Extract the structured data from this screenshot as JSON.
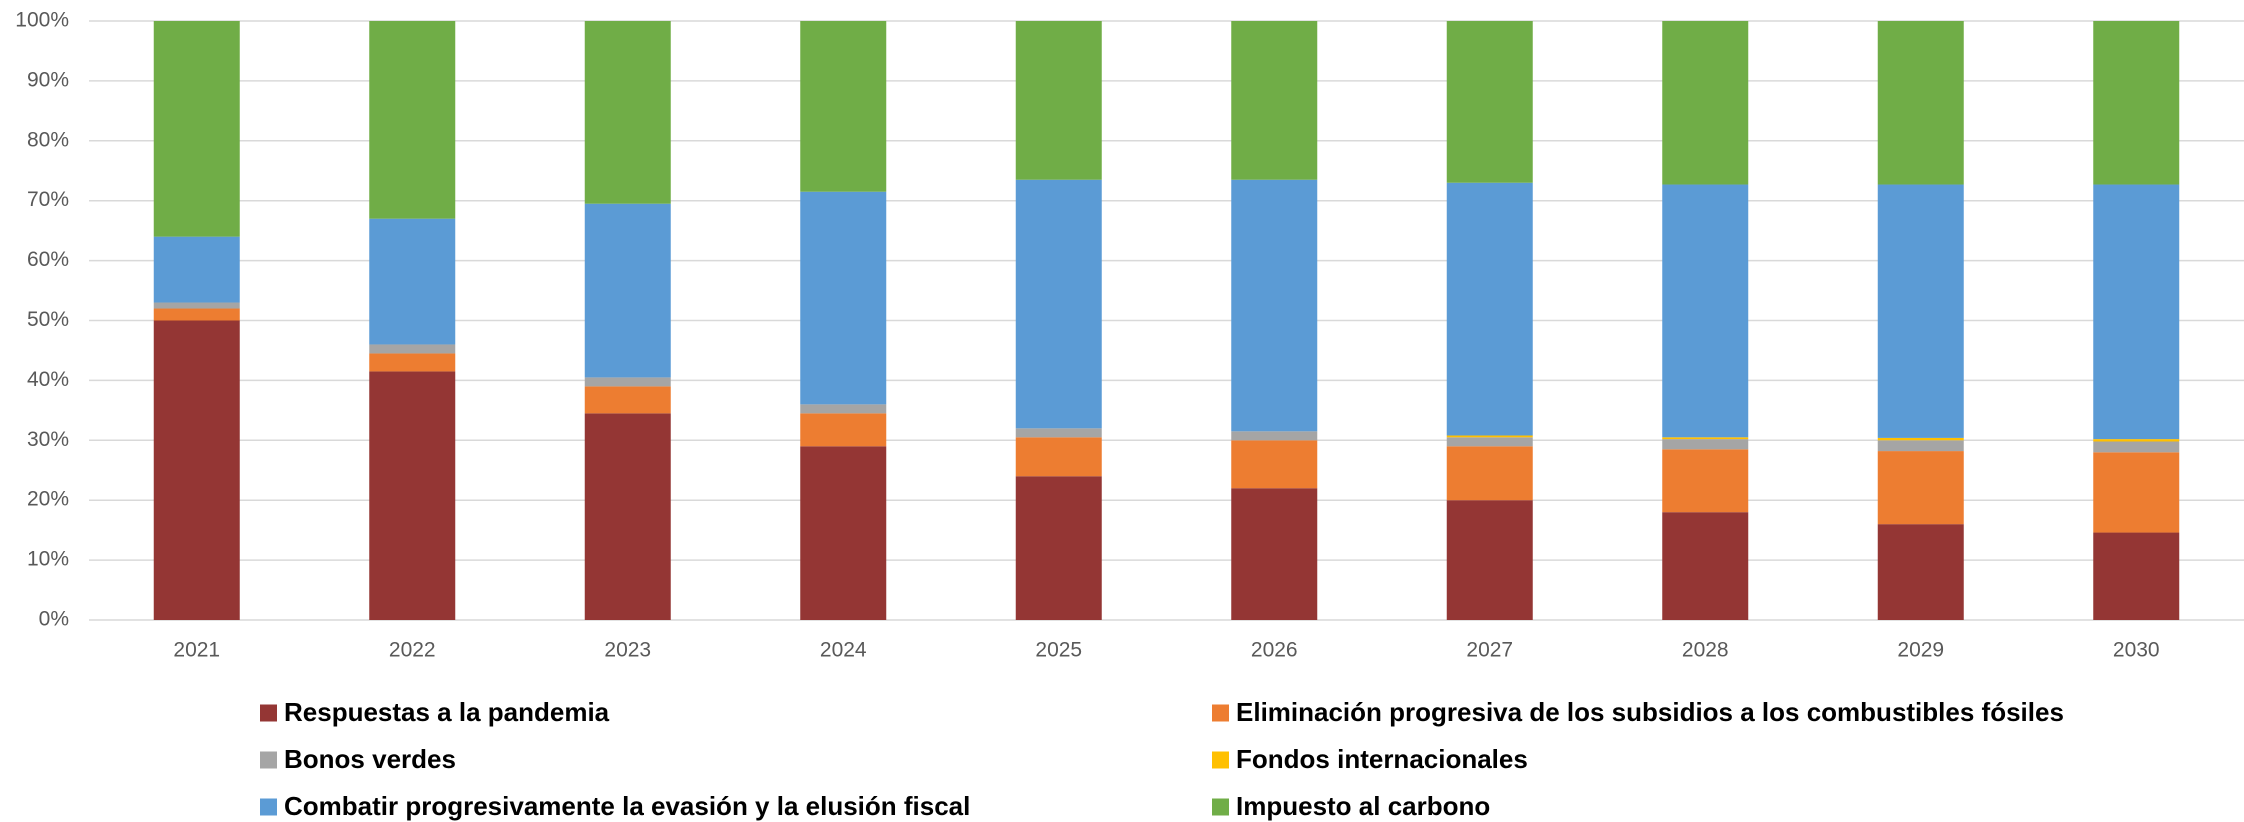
{
  "chart_data": {
    "type": "stacked_bar",
    "categories": [
      "2021",
      "2022",
      "2023",
      "2024",
      "2025",
      "2026",
      "2027",
      "2028",
      "2029",
      "2030"
    ],
    "series": [
      {
        "name": "Respuestas a la pandemia",
        "color": "#943634",
        "values": [
          50,
          41.5,
          34.5,
          29,
          24,
          22,
          20,
          18,
          16,
          14.6
        ]
      },
      {
        "name": "Eliminación progresiva de los subsidios a los combustibles fósiles",
        "color": "#ED7D31",
        "values": [
          2,
          3,
          4.5,
          5.5,
          6.5,
          8,
          9,
          10.5,
          12.2,
          13.4
        ]
      },
      {
        "name": "Bonos verdes",
        "color": "#A5A5A5",
        "values": [
          1,
          1.5,
          1.5,
          1.5,
          1.5,
          1.5,
          1.5,
          1.7,
          1.8,
          1.8
        ]
      },
      {
        "name": "Fondos internacionales",
        "color": "#FFC000",
        "values": [
          0,
          0,
          0,
          0,
          0,
          0,
          0.3,
          0.3,
          0.4,
          0.4
        ]
      },
      {
        "name": "Combatir progresivamente la evasión y la elusión fiscal",
        "color": "#5B9BD5",
        "values": [
          11,
          21,
          29,
          35.5,
          41.5,
          42,
          42.2,
          42.2,
          42.3,
          42.5
        ]
      },
      {
        "name": "Impuesto al carbono",
        "color": "#70AD47",
        "values": [
          36,
          33,
          30.5,
          28.5,
          26.5,
          26.5,
          27,
          27.3,
          27.3,
          27.3
        ]
      }
    ],
    "ylim": [
      0,
      100
    ],
    "yticks": [
      {
        "value": 0,
        "label": "0%"
      },
      {
        "value": 10,
        "label": "10%"
      },
      {
        "value": 20,
        "label": "20%"
      },
      {
        "value": 30,
        "label": "30%"
      },
      {
        "value": 40,
        "label": "40%"
      },
      {
        "value": 50,
        "label": "50%"
      },
      {
        "value": 60,
        "label": "60%"
      },
      {
        "value": 70,
        "label": "70%"
      },
      {
        "value": 80,
        "label": "80%"
      },
      {
        "value": 90,
        "label": "90%"
      },
      {
        "value": 100,
        "label": "100%"
      }
    ],
    "grid": true,
    "legend": "bottom"
  }
}
